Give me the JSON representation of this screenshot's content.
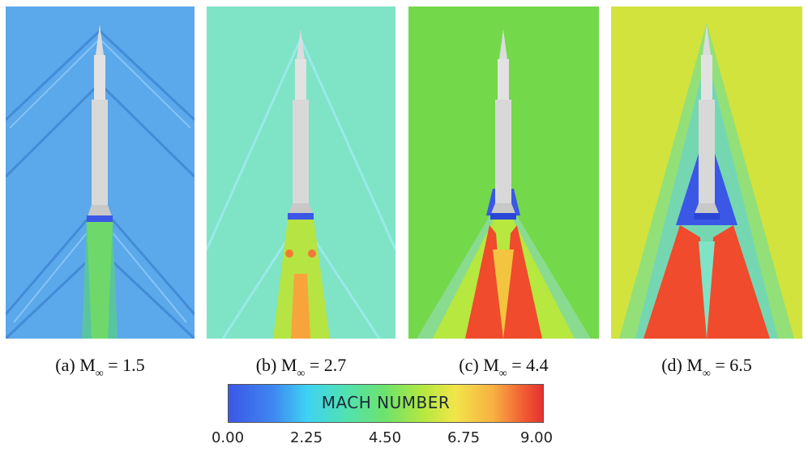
{
  "panels": [
    {
      "caption_prefix": "(a) M",
      "caption_sub": "∞",
      "caption_value": "= 1.5",
      "background": "#5ba8ea",
      "plume": "#6fd86a"
    },
    {
      "caption_prefix": "(b) M",
      "caption_sub": "∞",
      "caption_value": "= 2.7",
      "background": "#7fe3c6",
      "plume": "#b5e443"
    },
    {
      "caption_prefix": "(c) M",
      "caption_sub": "∞",
      "caption_value": "= 4.4",
      "background": "#73d84a",
      "plume": "#f05a2d"
    },
    {
      "caption_prefix": "(d) M",
      "caption_sub": "∞",
      "caption_value": "= 6.5",
      "background": "#d2e33d",
      "plume": "#ef4b2c"
    }
  ],
  "colorbar": {
    "title": "MACH NUMBER",
    "ticks": [
      "0.00",
      "2.25",
      "4.50",
      "6.75",
      "9.00"
    ]
  }
}
